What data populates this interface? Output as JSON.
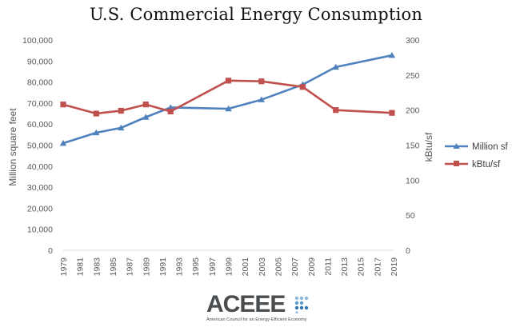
{
  "chart_data": {
    "type": "line",
    "title": "U.S. Commercial Energy Consumption",
    "ylabel_left": "Million square feet",
    "ylabel_right": "kBtu/sf",
    "x_ticks": [
      "1979",
      "1981",
      "1983",
      "1985",
      "1987",
      "1989",
      "1991",
      "1993",
      "1995",
      "1997",
      "1999",
      "2001",
      "2003",
      "2005",
      "2007",
      "2009",
      "2011",
      "2013",
      "2015",
      "2017",
      "2019"
    ],
    "y_left_ticks": [
      "0",
      "10,000",
      "20,000",
      "30,000",
      "40,000",
      "50,000",
      "60,000",
      "70,000",
      "80,000",
      "90,000",
      "100,000"
    ],
    "y_right_ticks": [
      "0",
      "50",
      "100",
      "150",
      "200",
      "250",
      "300"
    ],
    "xlim": [
      1979,
      2019
    ],
    "ylim_left": [
      0,
      100000
    ],
    "ylim_right": [
      0,
      300
    ],
    "grid": false,
    "legend_position": "right",
    "series": [
      {
        "name": "Million sf",
        "axis": "left",
        "color": "#4f81bd",
        "marker": "triangle",
        "x": [
          1979,
          1983,
          1986,
          1989,
          1992,
          1999,
          2003,
          2008,
          2012,
          2018.8
        ],
        "y": [
          50900,
          55900,
          58200,
          63300,
          67900,
          67300,
          71600,
          78800,
          87100,
          92700
        ]
      },
      {
        "name": "kBtu/sf",
        "axis": "right",
        "color": "#c0504d",
        "marker": "square",
        "x": [
          1979,
          1983,
          1986,
          1989,
          1992,
          1999,
          2003,
          2008,
          2012,
          2018.8
        ],
        "y": [
          208,
          195,
          199,
          208,
          198,
          242,
          241,
          233,
          200,
          196
        ]
      }
    ]
  },
  "logo": {
    "word": "ACEEE",
    "tagline": "American Council for an Energy-Efficient Economy"
  }
}
